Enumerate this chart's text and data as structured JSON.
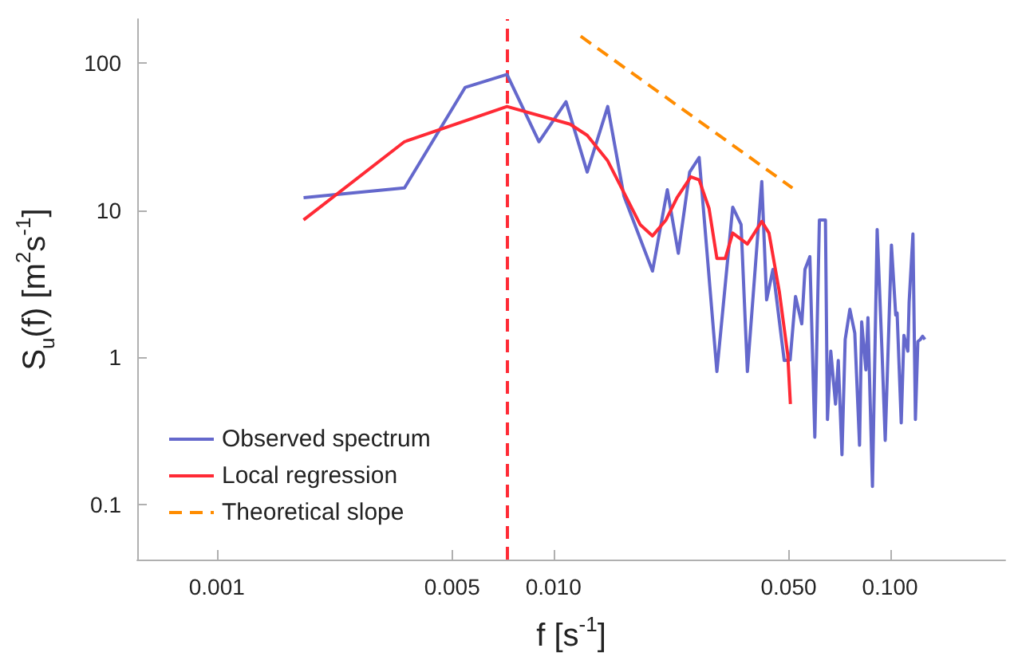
{
  "chart_data": {
    "type": "line",
    "xlabel": "f [s$^{-1}$]",
    "ylabel": "S$_{u}$(f) [m$^{2}$s$^{-1}$]",
    "log": "xy",
    "xlim": [
      0.00058,
      0.22
    ],
    "ylim": [
      0.042,
      200
    ],
    "xticks": [
      0.001,
      0.005,
      {
        "value": 0.01,
        "label": "0.010"
      },
      {
        "value": 0.05,
        "label": "0.050"
      },
      {
        "value": 0.1,
        "label": "0.100"
      }
    ],
    "yticks": [
      0.1,
      1,
      10,
      100
    ],
    "grid": false,
    "legend": "bottom left",
    "marker": "none",
    "series": [
      {
        "name": "Observed spectrum",
        "color": "#6468cc",
        "line_style": "solid",
        "x": [
          0.00181,
          0.00361,
          0.00547,
          0.00728,
          0.00906,
          0.0109,
          0.0126,
          0.0145,
          0.0162,
          0.0197,
          0.0218,
          0.0235,
          0.0254,
          0.0271,
          0.0306,
          0.0341,
          0.0361,
          0.0377,
          0.0416,
          0.043,
          0.0449,
          0.0485,
          0.0505,
          0.0524,
          0.0547,
          0.0559,
          0.0578,
          0.0598,
          0.0617,
          0.0643,
          0.0652,
          0.0667,
          0.0689,
          0.0702,
          0.072,
          0.0736,
          0.076,
          0.0786,
          0.0812,
          0.0824,
          0.0848,
          0.086,
          0.0887,
          0.0916,
          0.0946,
          0.0968,
          0.101,
          0.104,
          0.105,
          0.108,
          0.11,
          0.113,
          0.114,
          0.117,
          0.119,
          0.121,
          0.123,
          0.125,
          0.127
        ],
        "values": [
          12.2,
          14.2,
          68.7,
          84,
          29.3,
          54.8,
          18.2,
          50.9,
          12.5,
          3.86,
          13.8,
          5.1,
          18.2,
          22.9,
          0.8,
          10.5,
          8.0,
          0.8,
          15.7,
          2.46,
          3.96,
          0.95,
          0.96,
          2.59,
          1.69,
          3.96,
          4.84,
          0.286,
          8.6,
          8.6,
          0.377,
          1.1,
          0.48,
          0.95,
          0.217,
          1.32,
          2.12,
          1.46,
          0.252,
          1.74,
          0.82,
          1.86,
          0.132,
          7.4,
          1.16,
          0.272,
          5.8,
          1.94,
          2.0,
          0.358,
          1.41,
          1.1,
          2.38,
          6.9,
          0.377,
          1.28,
          1.32,
          1.39,
          1.32
        ]
      },
      {
        "name": "Local regression",
        "color": "#ff2a35",
        "line_style": "solid",
        "x": [
          0.00181,
          0.00361,
          0.00728,
          0.0112,
          0.0126,
          0.0145,
          0.0162,
          0.0181,
          0.0197,
          0.0216,
          0.0233,
          0.0256,
          0.0271,
          0.029,
          0.0306,
          0.0324,
          0.0341,
          0.0377,
          0.0416,
          0.0437,
          0.0469,
          0.0497,
          0.0506
        ],
        "values": [
          8.6,
          29.3,
          50.9,
          38.6,
          32.4,
          21.7,
          13.2,
          8.0,
          6.7,
          8.6,
          12.2,
          16.9,
          16.1,
          10.3,
          4.7,
          4.7,
          7.0,
          5.9,
          8.4,
          7.0,
          2.8,
          1.03,
          0.48
        ]
      },
      {
        "name": "Theoretical slope",
        "color": "#ff8c00",
        "line_style": "dashed",
        "x": [
          0.01205,
          0.0513
        ],
        "values": [
          153,
          14.2
        ]
      }
    ],
    "ref_lines": [
      {
        "axis": "x",
        "value": 0.0073,
        "color": "#ff2a35",
        "line_style": "dashed"
      }
    ]
  }
}
